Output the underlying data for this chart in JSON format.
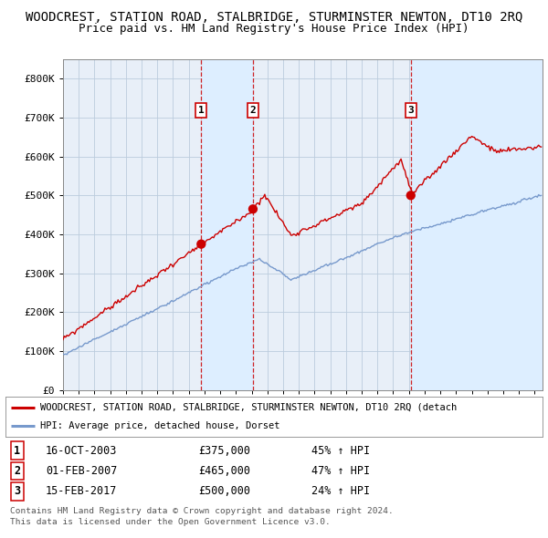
{
  "title": "WOODCREST, STATION ROAD, STALBRIDGE, STURMINSTER NEWTON, DT10 2RQ",
  "subtitle": "Price paid vs. HM Land Registry's House Price Index (HPI)",
  "title_fontsize": 10,
  "subtitle_fontsize": 9,
  "legend_line1": "WOODCREST, STATION ROAD, STALBRIDGE, STURMINSTER NEWTON, DT10 2RQ (detach",
  "legend_line2": "HPI: Average price, detached house, Dorset",
  "footer1": "Contains HM Land Registry data © Crown copyright and database right 2024.",
  "footer2": "This data is licensed under the Open Government Licence v3.0.",
  "transactions": [
    {
      "num": 1,
      "date": "16-OCT-2003",
      "price": 375000,
      "pct": "45%",
      "dir": "↑",
      "x_year": 2003.79
    },
    {
      "num": 2,
      "date": "01-FEB-2007",
      "price": 465000,
      "pct": "47%",
      "dir": "↑",
      "x_year": 2007.08
    },
    {
      "num": 3,
      "date": "15-FEB-2017",
      "price": 500000,
      "pct": "24%",
      "dir": "↑",
      "x_year": 2017.12
    }
  ],
  "red_color": "#cc0000",
  "blue_color": "#7799cc",
  "dot_color": "#cc0000",
  "shade_color": "#ddeeff",
  "grid_color": "#bbccdd",
  "plot_bg_color": "#e8eff8",
  "bg_color": "#ffffff",
  "ylim": [
    0,
    850000
  ],
  "xlim_start": 1995.0,
  "xlim_end": 2025.5,
  "yticks": [
    0,
    100000,
    200000,
    300000,
    400000,
    500000,
    600000,
    700000,
    800000
  ],
  "ytick_labels": [
    "£0",
    "£100K",
    "£200K",
    "£300K",
    "£400K",
    "£500K",
    "£600K",
    "£700K",
    "£800K"
  ]
}
